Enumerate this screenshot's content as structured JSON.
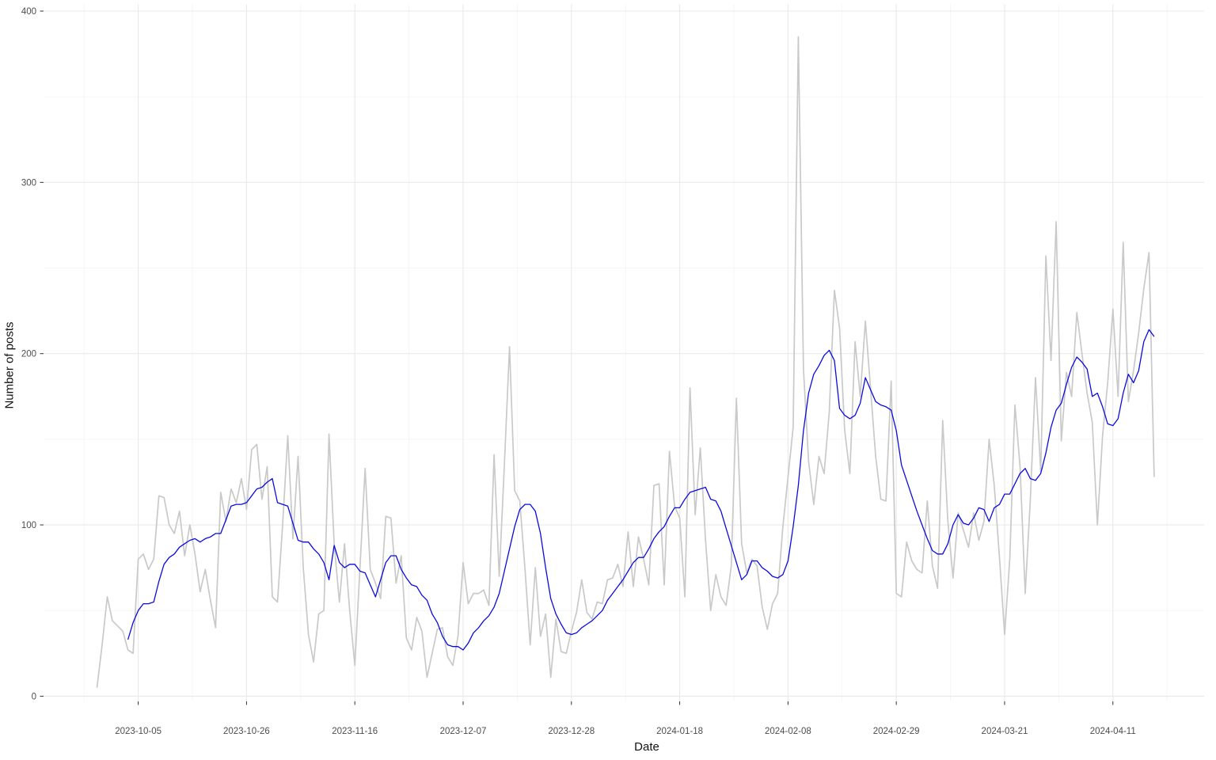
{
  "chart_data": {
    "type": "line",
    "title": "",
    "xlabel": "Date",
    "ylabel": "Number of posts",
    "grid": "major+minor",
    "legend_position": "none",
    "background": "#ffffff",
    "colors": {
      "daily_line": "#c9c9c9",
      "smoothed_line": "#0b0bdf",
      "major_grid": "#e9e9e9",
      "minor_grid": "#f2f2f2",
      "tick_mark": "#333333",
      "tick_label": "#4d4d4d",
      "axis_title": "#111111"
    },
    "ylim": [
      0,
      400
    ],
    "y_major_ticks": [
      0,
      100,
      200,
      300,
      400
    ],
    "y_minor_ticks": [
      50,
      150,
      250,
      350
    ],
    "x_start_date": "2023-09-27",
    "x_ticks": [
      {
        "day": 8,
        "label": "2023-10-05"
      },
      {
        "day": 29,
        "label": "2023-10-26"
      },
      {
        "day": 50,
        "label": "2023-11-16"
      },
      {
        "day": 71,
        "label": "2023-12-07"
      },
      {
        "day": 92,
        "label": "2023-12-28"
      },
      {
        "day": 113,
        "label": "2024-01-18"
      },
      {
        "day": 134,
        "label": "2024-02-08"
      },
      {
        "day": 155,
        "label": "2024-02-29"
      },
      {
        "day": 176,
        "label": "2024-03-21"
      },
      {
        "day": 197,
        "label": "2024-04-11"
      }
    ],
    "x_minor_tick_days": [
      -2.5,
      18.5,
      39.5,
      60.5,
      81.5,
      102.5,
      123.5,
      144.5,
      165.5,
      186.5,
      207.5
    ],
    "series": [
      {
        "name": "daily-posts-gray",
        "values": [
          5,
          30,
          58,
          44,
          41,
          38,
          27,
          25,
          80,
          83,
          74,
          80,
          117,
          116,
          100,
          95,
          108,
          82,
          100,
          83,
          61,
          74,
          56,
          40,
          119,
          102,
          121,
          113,
          127,
          109,
          144,
          147,
          115,
          134,
          58,
          55,
          100,
          152,
          92,
          140,
          75,
          36,
          20,
          48,
          50,
          153,
          89,
          55,
          89,
          50,
          18,
          75,
          133,
          74,
          66,
          57,
          105,
          104,
          66,
          82,
          34,
          27,
          46,
          38,
          11,
          25,
          39,
          40,
          23,
          18,
          35,
          78,
          54,
          60,
          60,
          62,
          53,
          141,
          70,
          135,
          204,
          120,
          114,
          74,
          30,
          75,
          35,
          48,
          11,
          45,
          26,
          25,
          38,
          49,
          68,
          49,
          45,
          55,
          54,
          68,
          69,
          77,
          64,
          96,
          64,
          93,
          80,
          65,
          123,
          124,
          65,
          143,
          111,
          104,
          58,
          180,
          106,
          145,
          91,
          50,
          71,
          58,
          53,
          76,
          174,
          89,
          72,
          80,
          76,
          52,
          39,
          54,
          60,
          99,
          128,
          157,
          385,
          191,
          137,
          112,
          140,
          130,
          166,
          237,
          215,
          155,
          130,
          207,
          175,
          219,
          180,
          140,
          115,
          114,
          184,
          60,
          58,
          90,
          79,
          74,
          72,
          114,
          76,
          63,
          161,
          102,
          69,
          107,
          97,
          87,
          107,
          91,
          102,
          150,
          123,
          81,
          36,
          80,
          170,
          134,
          60,
          115,
          186,
          131,
          257,
          196,
          277,
          149,
          189,
          175,
          224,
          200,
          177,
          160,
          100,
          152,
          183,
          226,
          175,
          265,
          172,
          190,
          212,
          238,
          259,
          128
        ]
      },
      {
        "name": "smoothed-posts-blue",
        "values": [
          null,
          null,
          null,
          null,
          null,
          null,
          33,
          43,
          50,
          54,
          54,
          55,
          67,
          77,
          81,
          83,
          87,
          89,
          91,
          92,
          90,
          92,
          93,
          95,
          95,
          103,
          111,
          112,
          112,
          113,
          117,
          121,
          122,
          125,
          127,
          113,
          112,
          111,
          101,
          91,
          90,
          90,
          86,
          83,
          78,
          68,
          88,
          78,
          75,
          77,
          77,
          73,
          72,
          65,
          58,
          68,
          78,
          82,
          82,
          74,
          69,
          65,
          64,
          59,
          56,
          48,
          43,
          35,
          30,
          29,
          29,
          27,
          31,
          37,
          40,
          44,
          47,
          52,
          60,
          73,
          86,
          99,
          109,
          112,
          112,
          108,
          95,
          75,
          57,
          48,
          42,
          37,
          36,
          37,
          40,
          42,
          44,
          47,
          50,
          56,
          60,
          64,
          68,
          73,
          78,
          81,
          81,
          86,
          92,
          96,
          99,
          105,
          110,
          110,
          115,
          119,
          120,
          121,
          122,
          115,
          114,
          108,
          98,
          88,
          78,
          68,
          71,
          79,
          79,
          75,
          73,
          70,
          69,
          71,
          79,
          99,
          123,
          155,
          177,
          188,
          193,
          199,
          202,
          196,
          168,
          164,
          162,
          164,
          171,
          186,
          179,
          172,
          170,
          169,
          167,
          155,
          135,
          126,
          117,
          108,
          100,
          92,
          85,
          83,
          83,
          89,
          100,
          106,
          101,
          100,
          104,
          110,
          109,
          102,
          110,
          112,
          118,
          118,
          124,
          130,
          133,
          127,
          126,
          130,
          142,
          157,
          167,
          171,
          182,
          192,
          198,
          195,
          191,
          175,
          177,
          169,
          159,
          158,
          162,
          177,
          188,
          183,
          190,
          207,
          214,
          210
        ]
      }
    ],
    "geometry_note": "x = 122.5 + 6.514*day ; y = 879.4 - 2.1635*value"
  }
}
